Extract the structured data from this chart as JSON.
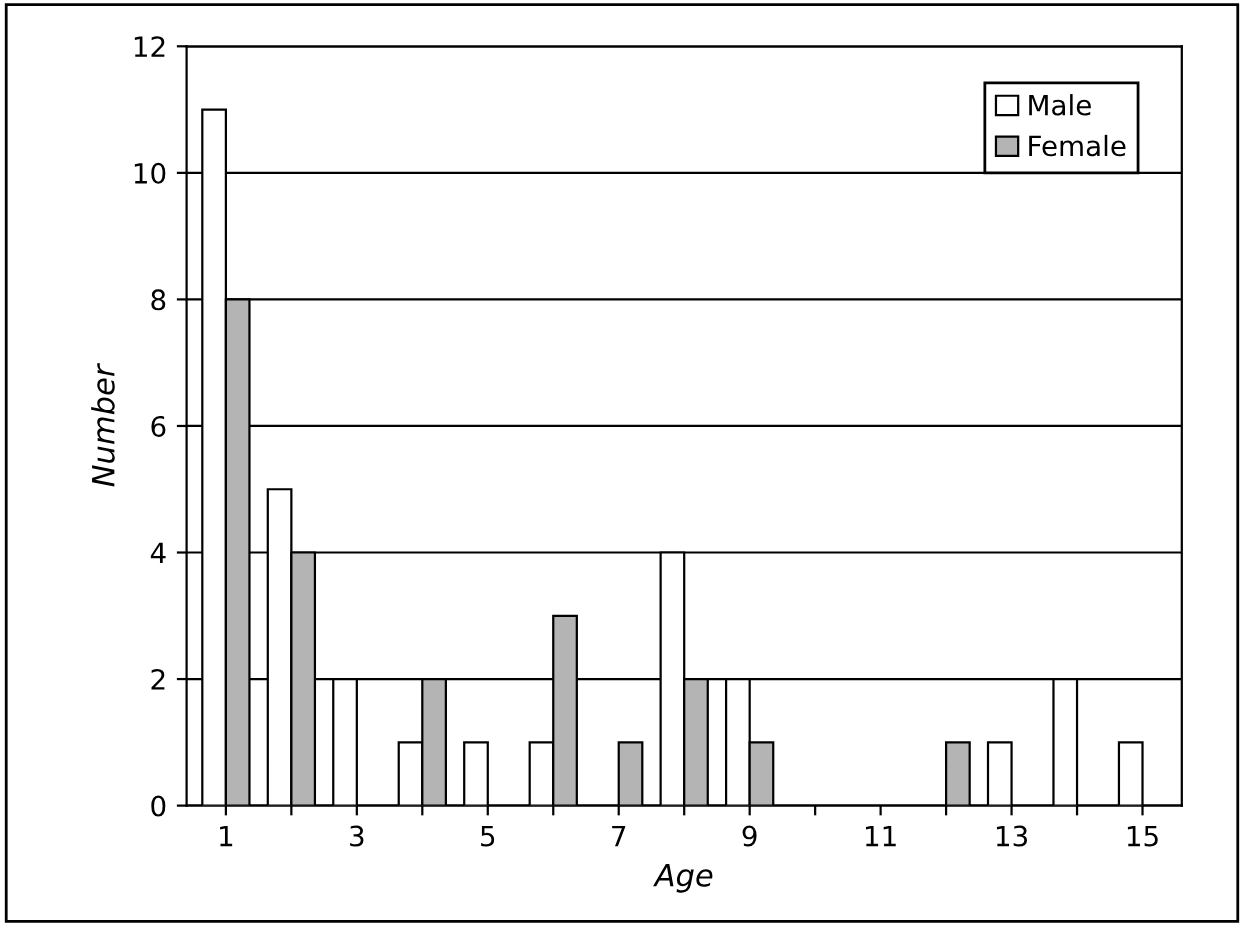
{
  "chart_data": {
    "type": "bar",
    "xlabel": "Age",
    "ylabel": "Number",
    "categories": [
      "1",
      null,
      "3",
      null,
      "5",
      null,
      "7",
      null,
      "9",
      null,
      "11",
      null,
      "13",
      null,
      "15"
    ],
    "series": [
      {
        "name": "Male",
        "color": "#ffffff",
        "values": [
          11,
          5,
          2,
          1,
          1,
          1,
          0,
          4,
          2,
          0,
          0,
          0,
          1,
          2,
          1
        ]
      },
      {
        "name": "Female",
        "color": "#b4b4b4",
        "values": [
          8,
          4,
          0,
          2,
          0,
          3,
          1,
          2,
          1,
          0,
          0,
          1,
          0,
          0,
          0
        ]
      }
    ],
    "ylim": [
      0,
      12
    ],
    "yticks": [
      0,
      2,
      4,
      6,
      8,
      10,
      12
    ],
    "grid": "y",
    "legend": "top right"
  }
}
